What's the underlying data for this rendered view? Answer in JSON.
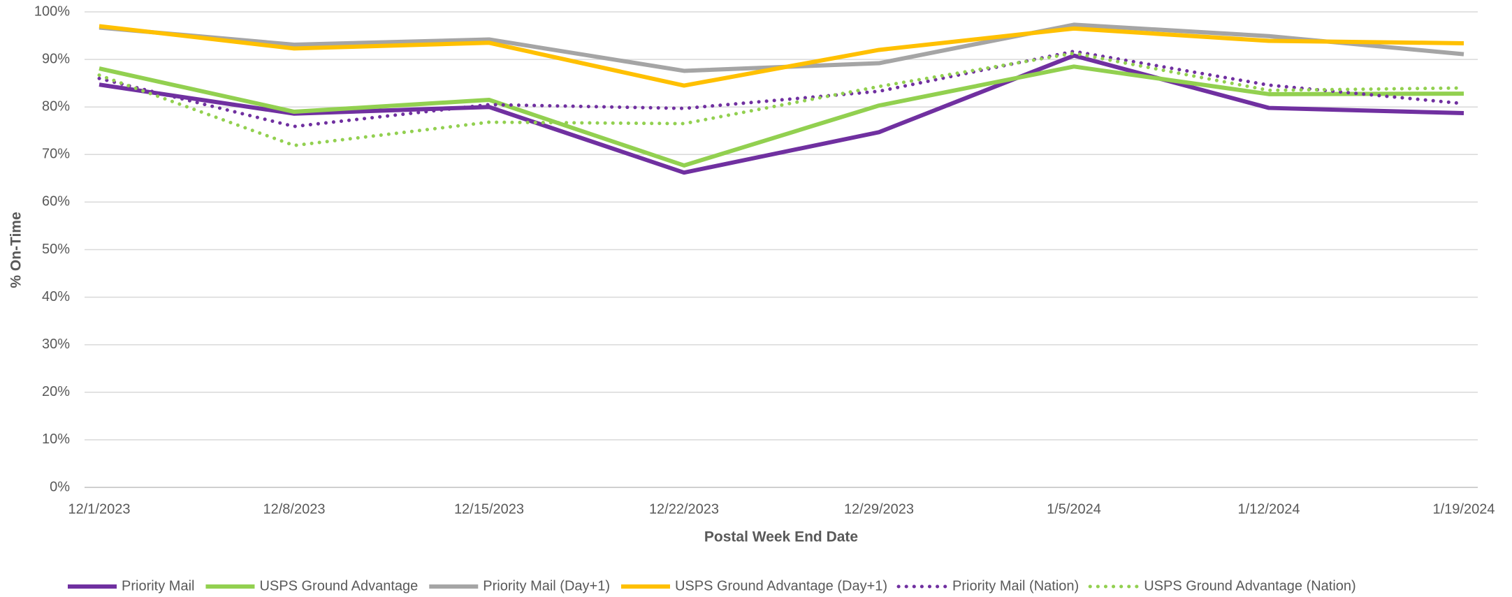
{
  "chart_data": {
    "type": "line",
    "y_label": "% On-Time",
    "x_label": "Postal Week End Date",
    "categories": [
      "12/1/2023",
      "12/8/2023",
      "12/15/2023",
      "12/22/2023",
      "12/29/2023",
      "1/5/2024",
      "1/12/2024",
      "1/19/2024"
    ],
    "ylim": [
      0,
      100
    ],
    "yticks": [
      {
        "value": 0,
        "label": "0%"
      },
      {
        "value": 10,
        "label": "10%"
      },
      {
        "value": 20,
        "label": "20%"
      },
      {
        "value": 30,
        "label": "30%"
      },
      {
        "value": 40,
        "label": "40%"
      },
      {
        "value": 50,
        "label": "50%"
      },
      {
        "value": 60,
        "label": "60%"
      },
      {
        "value": 70,
        "label": "70%"
      },
      {
        "value": 80,
        "label": "80%"
      },
      {
        "value": 90,
        "label": "90%"
      },
      {
        "value": 100,
        "label": "100%"
      }
    ],
    "grid": true,
    "legend": "bottom",
    "series": [
      {
        "name": "Priority Mail",
        "color": "#7030a0",
        "style": "solid",
        "values": [
          84.7,
          78.6,
          80.0,
          66.2,
          74.7,
          90.8,
          79.8,
          78.7
        ]
      },
      {
        "name": "USPS Ground Advantage",
        "color": "#92d050",
        "style": "solid",
        "values": [
          88.1,
          79.0,
          81.5,
          67.7,
          80.3,
          88.5,
          82.7,
          82.8
        ]
      },
      {
        "name": "Priority Mail (Day+1)",
        "color": "#a5a5a5",
        "style": "solid",
        "values": [
          96.7,
          93.1,
          94.2,
          87.6,
          89.2,
          97.3,
          94.9,
          91.1
        ]
      },
      {
        "name": "USPS Ground Advantage (Day+1)",
        "color": "#ffc000",
        "style": "solid",
        "values": [
          97.0,
          92.3,
          93.5,
          84.5,
          92.0,
          96.5,
          93.9,
          93.4
        ]
      },
      {
        "name": "Priority Mail (Nation)",
        "color": "#7030a0",
        "style": "dotted",
        "values": [
          86.0,
          75.9,
          80.5,
          79.7,
          83.3,
          91.7,
          84.6,
          80.7
        ]
      },
      {
        "name": "USPS Ground Advantage (Nation)",
        "color": "#92d050",
        "style": "dotted",
        "values": [
          86.7,
          71.9,
          76.8,
          76.5,
          84.3,
          91.3,
          83.5,
          84.0
        ]
      }
    ]
  }
}
